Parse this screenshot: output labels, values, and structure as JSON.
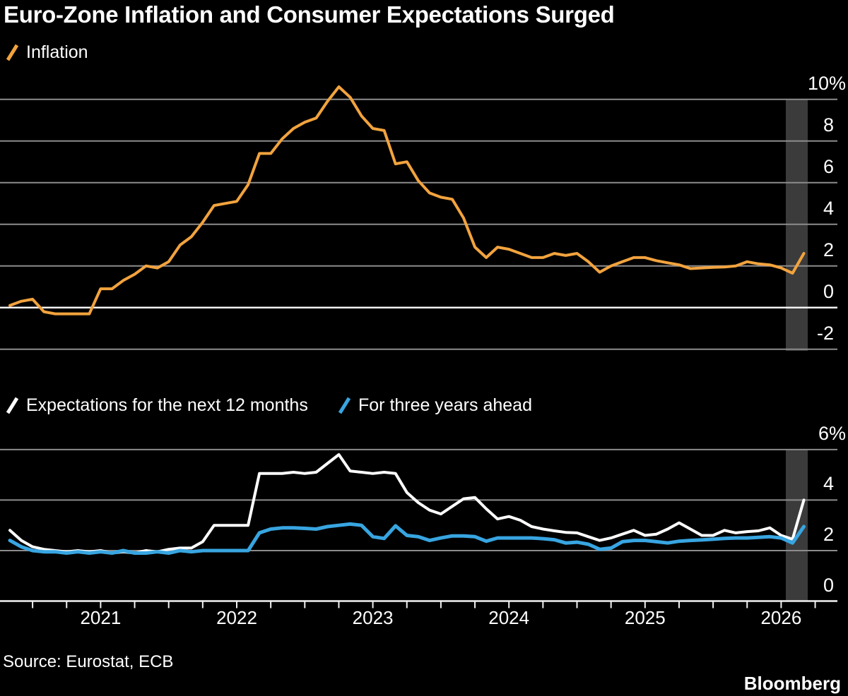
{
  "title": "Euro-Zone Inflation and Consumer Expectations Surged",
  "source_line": "Source: Eurostat, ECB",
  "brand": "Bloomberg",
  "colors": {
    "background": "#000000",
    "orange": "#F2A33E",
    "blue": "#38A5E1",
    "white": "#FFFFFF",
    "grid": "#8C8C8C",
    "baseline": "#F2F2F2",
    "band": "#3B3B3B",
    "text": "#FFFFFF"
  },
  "x_axis": {
    "start_month": "2020-05",
    "frequency": "monthly",
    "minor_tick_every_months": 3,
    "first_tick_month_index": 2,
    "last_tick_month_index": 71,
    "year_labels": [
      {
        "label": "2021",
        "month_index": 8
      },
      {
        "label": "2022",
        "month_index": 20
      },
      {
        "label": "2023",
        "month_index": 32
      },
      {
        "label": "2024",
        "month_index": 44
      },
      {
        "label": "2025",
        "month_index": 56
      },
      {
        "label": "2026",
        "month_index": 68
      }
    ]
  },
  "highlight_band": {
    "month_range": [
      69,
      70
    ],
    "note": "shaded band over the two most recent months"
  },
  "chart_data": [
    {
      "type": "line",
      "panel": "top",
      "legend": [
        {
          "label": "Inflation",
          "color_key": "orange"
        }
      ],
      "x_start": "2020-05",
      "x_end": "2026-03",
      "frequency": "monthly",
      "ylabel": "%",
      "ylim": [
        -2.9,
        11.2
      ],
      "yticks": [
        {
          "label": "10%",
          "value": 10
        },
        {
          "label": "8",
          "value": 8
        },
        {
          "label": "6",
          "value": 6
        },
        {
          "label": "4",
          "value": 4
        },
        {
          "label": "2",
          "value": 2
        },
        {
          "label": "0",
          "value": 0
        },
        {
          "label": "-2",
          "value": -2
        }
      ],
      "grid": "horizontal",
      "zero_line": "white",
      "series": [
        {
          "name": "Inflation",
          "color_key": "orange",
          "stroke_width": 4,
          "values": [
            0.1,
            0.3,
            0.4,
            -0.2,
            -0.3,
            -0.3,
            -0.3,
            -0.3,
            0.9,
            0.9,
            1.3,
            1.6,
            2.0,
            1.9,
            2.2,
            3.0,
            3.4,
            4.1,
            4.9,
            5.0,
            5.1,
            5.9,
            7.4,
            7.4,
            8.1,
            8.6,
            8.9,
            9.1,
            9.9,
            10.6,
            10.1,
            9.2,
            8.6,
            8.5,
            6.9,
            7.0,
            6.1,
            5.5,
            5.3,
            5.2,
            4.3,
            2.9,
            2.4,
            2.9,
            2.8,
            2.6,
            2.4,
            2.4,
            2.6,
            2.5,
            2.6,
            2.2,
            1.7,
            2.0,
            2.2,
            2.4,
            2.4,
            2.25,
            2.15,
            2.05,
            1.87,
            1.9,
            1.93,
            1.95,
            2.0,
            2.2,
            2.1,
            2.05,
            1.9,
            1.65,
            2.6
          ]
        }
      ]
    },
    {
      "type": "line",
      "panel": "bottom",
      "legend": [
        {
          "label": "Expectations for the next 12 months",
          "color_key": "white"
        },
        {
          "label": "For three years ahead",
          "color_key": "blue"
        }
      ],
      "x_start": "2020-05",
      "x_end": "2026-03",
      "frequency": "monthly",
      "ylabel": "%",
      "ylim": [
        -0.4,
        6.3
      ],
      "yticks": [
        {
          "label": "6%",
          "value": 6
        },
        {
          "label": "4",
          "value": 4
        },
        {
          "label": "2",
          "value": 2
        },
        {
          "label": "0",
          "value": 0
        }
      ],
      "grid": "horizontal",
      "zero_line": "white",
      "series": [
        {
          "name": "Expectations for the next 12 months",
          "color_key": "white",
          "stroke_width": 4,
          "values": [
            2.8,
            2.4,
            2.15,
            2.05,
            2.0,
            1.95,
            2.0,
            1.95,
            2.0,
            1.9,
            1.95,
            1.9,
            2.0,
            1.95,
            2.05,
            2.1,
            2.1,
            2.35,
            3.0,
            3.0,
            3.0,
            3.0,
            5.05,
            5.05,
            5.05,
            5.1,
            5.05,
            5.1,
            5.45,
            5.8,
            5.15,
            5.1,
            5.05,
            5.1,
            5.05,
            4.3,
            3.9,
            3.6,
            3.45,
            3.75,
            4.05,
            4.1,
            3.65,
            3.25,
            3.35,
            3.2,
            2.95,
            2.85,
            2.78,
            2.72,
            2.7,
            2.55,
            2.4,
            2.5,
            2.65,
            2.8,
            2.6,
            2.65,
            2.85,
            3.1,
            2.85,
            2.6,
            2.6,
            2.8,
            2.7,
            2.75,
            2.78,
            2.9,
            2.6,
            2.45,
            4.0
          ]
        },
        {
          "name": "For three years ahead",
          "color_key": "blue",
          "stroke_width": 5,
          "values": [
            2.4,
            2.15,
            2.0,
            1.95,
            1.95,
            1.9,
            1.95,
            1.9,
            1.95,
            1.9,
            2.0,
            1.9,
            1.9,
            1.95,
            1.9,
            2.0,
            1.95,
            2.0,
            2.0,
            2.0,
            2.0,
            2.0,
            2.7,
            2.85,
            2.9,
            2.9,
            2.88,
            2.85,
            2.95,
            3.0,
            3.05,
            3.0,
            2.55,
            2.48,
            2.98,
            2.6,
            2.55,
            2.4,
            2.5,
            2.58,
            2.58,
            2.55,
            2.37,
            2.5,
            2.5,
            2.5,
            2.5,
            2.47,
            2.43,
            2.3,
            2.33,
            2.25,
            2.05,
            2.1,
            2.35,
            2.4,
            2.4,
            2.35,
            2.3,
            2.37,
            2.4,
            2.42,
            2.45,
            2.48,
            2.5,
            2.5,
            2.52,
            2.55,
            2.5,
            2.3,
            2.95
          ]
        }
      ]
    }
  ]
}
